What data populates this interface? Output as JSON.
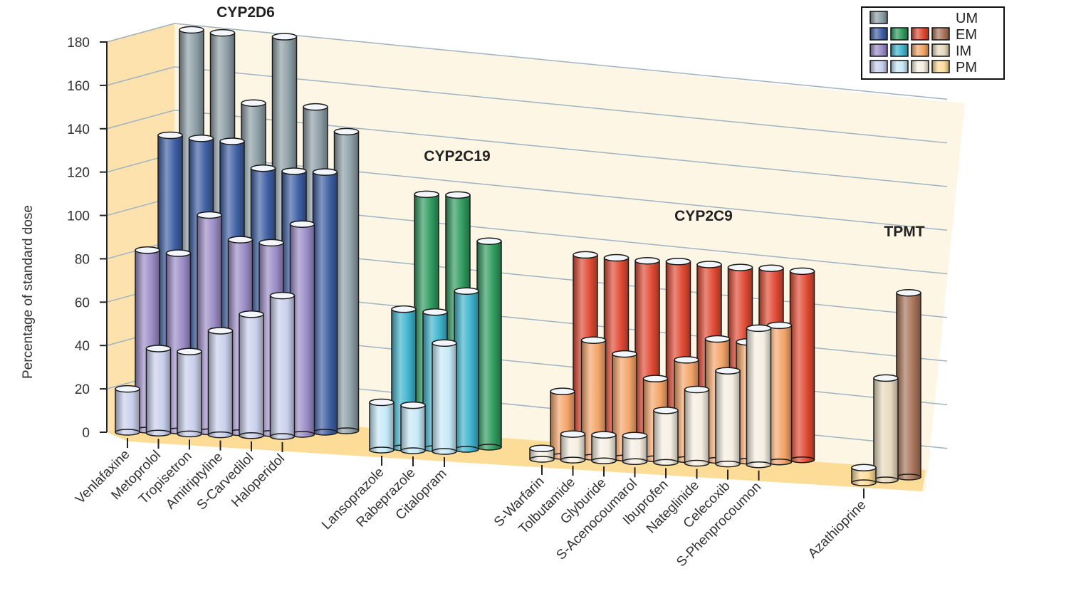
{
  "chart_data": {
    "type": "bar",
    "subtype": "3d-grouped-cylinder",
    "title": "",
    "xlabel": "",
    "ylabel": "Percentage of standard dose",
    "ylim": [
      0,
      180
    ],
    "yticks": [
      0,
      20,
      40,
      60,
      80,
      100,
      120,
      140,
      160,
      180
    ],
    "grid": true,
    "legend_position": "top-right",
    "legend": {
      "rows": [
        {
          "label": "UM",
          "swatches": [
            "#8d9ea6"
          ]
        },
        {
          "label": "EM",
          "swatches": [
            "#3e5fa3",
            "#2e9a5e",
            "#e04a33",
            "#a8735a"
          ]
        },
        {
          "label": "IM",
          "swatches": [
            "#9b8cc6",
            "#3fb3cc",
            "#f4a468",
            "#e6d9bd"
          ]
        },
        {
          "label": "PM",
          "swatches": [
            "#c9d0ec",
            "#c6e9f8",
            "#f5efe2",
            "#fddc98"
          ]
        }
      ]
    },
    "phenotypes": [
      "UM",
      "EM",
      "IM",
      "PM"
    ],
    "groups": [
      {
        "name": "CYP2D6",
        "colors": {
          "UM": "#8d9ea6",
          "EM": "#3e5fa3",
          "IM": "#9b8cc6",
          "PM": "#c9d0ec"
        },
        "categories": [
          "Venlafaxine",
          "Metoprolol",
          "Tropisetron",
          "Amitriptyline",
          "S-Carvedilol",
          "Haloperidol"
        ],
        "series": [
          {
            "name": "UM",
            "values": [
              183,
              182,
              150,
              181,
              149,
              138
            ]
          },
          {
            "name": "EM",
            "values": [
              135,
              134,
              133,
              121,
              120,
              120
            ]
          },
          {
            "name": "IM",
            "values": [
              83,
              82,
              100,
              89,
              88,
              97
            ]
          },
          {
            "name": "PM",
            "values": [
              20,
              39,
              38,
              48,
              56,
              65
            ]
          }
        ]
      },
      {
        "name": "CYP2C19",
        "colors": {
          "EM": "#2e9a5e",
          "IM": "#3fb3cc",
          "PM": "#c6e9f8"
        },
        "categories": [
          "Lansoprazole",
          "Rabeprazole",
          "Citalopram"
        ],
        "series": [
          {
            "name": "EM",
            "values": [
              116,
              116,
              95
            ]
          },
          {
            "name": "IM",
            "values": [
              64,
              63,
              73
            ]
          },
          {
            "name": "PM",
            "values": [
              22,
              21,
              50
            ]
          }
        ]
      },
      {
        "name": "CYP2C9",
        "colors": {
          "EM": "#e04a33",
          "IM": "#f4a468",
          "PM": "#f5efe2"
        },
        "categories": [
          "S-Warfarin",
          "Tolbutamide",
          "Glyburide",
          "S-Acenocoumarol",
          "Ibuprofen",
          "Nateglinide",
          "Celecoxib",
          "S-Phenprocoumon"
        ],
        "series": [
          {
            "name": "EM",
            "values": [
              92,
              91,
              90,
              90,
              89,
              88,
              88,
              87
            ]
          },
          {
            "name": "IM",
            "values": [
              30,
              54,
              48,
              37,
              46,
              56,
              55,
              63
            ]
          },
          {
            "name": "PM",
            "values": [
              5,
              12,
              12,
              12,
              24,
              34,
              43,
              63
            ]
          }
        ]
      },
      {
        "name": "TPMT",
        "colors": {
          "EM": "#a8735a",
          "IM": "#e6d9bd",
          "PM": "#fddc98"
        },
        "categories": [
          "Azathioprine"
        ],
        "series": [
          {
            "name": "EM",
            "values": [
              85
            ]
          },
          {
            "name": "IM",
            "values": [
              47
            ]
          },
          {
            "name": "PM",
            "values": [
              7
            ]
          }
        ]
      }
    ]
  }
}
